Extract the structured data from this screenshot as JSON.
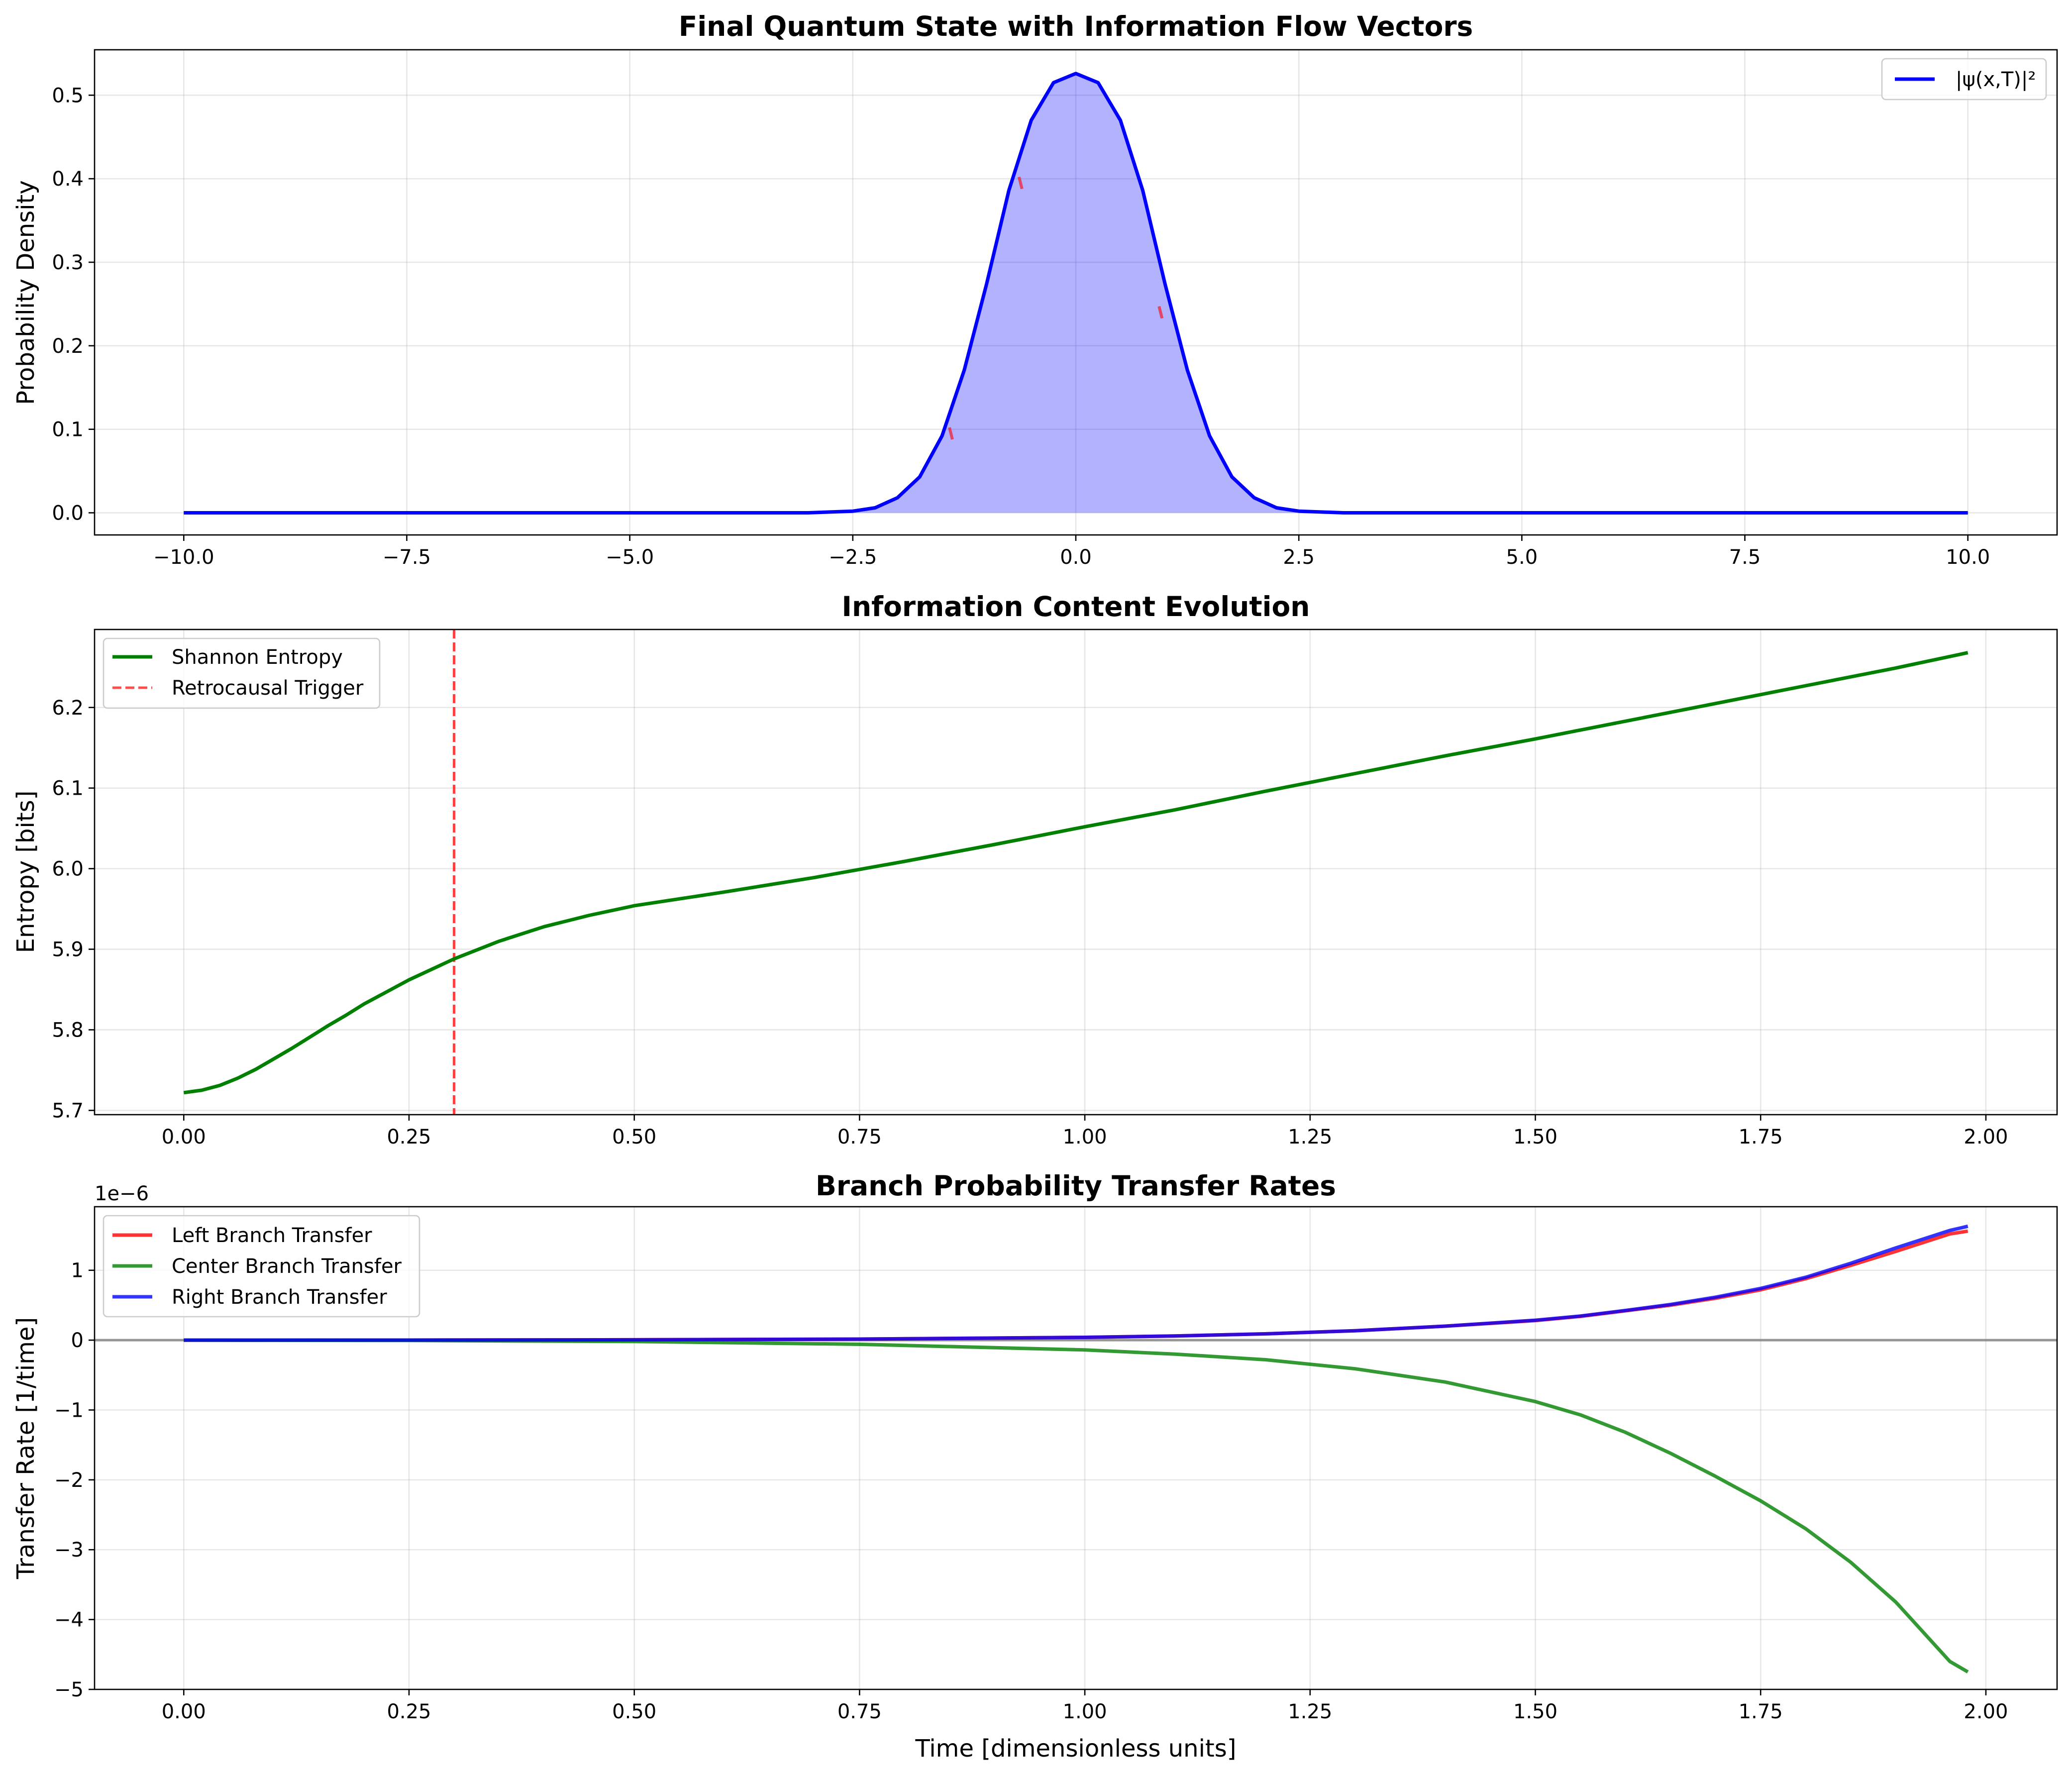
{
  "chart_data": [
    {
      "type": "area",
      "title": "Final Quantum State with Information Flow Vectors",
      "xlabel": "",
      "ylabel": "Probability Density",
      "xlim": [
        -11,
        11
      ],
      "ylim": [
        -0.0265,
        0.5544
      ],
      "xticks": [
        -10.0,
        -7.5,
        -5.0,
        -2.5,
        0.0,
        2.5,
        5.0,
        7.5,
        10.0
      ],
      "xtick_labels": [
        "−10.0",
        "−7.5",
        "−5.0",
        "−2.5",
        "0.0",
        "2.5",
        "5.0",
        "7.5",
        "10.0"
      ],
      "yticks": [
        0.0,
        0.1,
        0.2,
        0.3,
        0.4,
        0.5
      ],
      "ytick_labels": [
        "0.0",
        "0.1",
        "0.2",
        "0.3",
        "0.4",
        "0.5"
      ],
      "grid": true,
      "legend_position": "top-right",
      "series": [
        {
          "name": "|ψ(x,T)|²",
          "color": "#0000ff",
          "fill": "#0000ff",
          "fill_opacity": 0.3,
          "x": [
            -10,
            -3,
            -2.5,
            -2.25,
            -2,
            -1.75,
            -1.5,
            -1.25,
            -1,
            -0.75,
            -0.5,
            -0.25,
            0,
            0.25,
            0.5,
            0.75,
            1,
            1.25,
            1.5,
            1.75,
            2,
            2.25,
            2.5,
            3,
            10
          ],
          "y": [
            0,
            0.0,
            0.002,
            0.006,
            0.018,
            0.043,
            0.092,
            0.171,
            0.274,
            0.386,
            0.47,
            0.515,
            0.526,
            0.515,
            0.47,
            0.386,
            0.274,
            0.171,
            0.092,
            0.043,
            0.018,
            0.006,
            0.002,
            0.0,
            0
          ]
        }
      ],
      "vectors_color": "#ff0000",
      "vectors": [
        {
          "x": -1.4,
          "y": 0.095
        },
        {
          "x": -0.62,
          "y": 0.395
        },
        {
          "x": 0.95,
          "y": 0.24
        }
      ]
    },
    {
      "type": "line",
      "title": "Information Content Evolution",
      "xlabel": "",
      "ylabel": "Entropy [bits]",
      "xlim": [
        -0.099,
        2.079
      ],
      "ylim": [
        5.6947,
        6.2968
      ],
      "xticks": [
        0.0,
        0.25,
        0.5,
        0.75,
        1.0,
        1.25,
        1.5,
        1.75,
        2.0
      ],
      "xtick_labels": [
        "0.00",
        "0.25",
        "0.50",
        "0.75",
        "1.00",
        "1.25",
        "1.50",
        "1.75",
        "2.00"
      ],
      "yticks": [
        5.7,
        5.8,
        5.9,
        6.0,
        6.1,
        6.2
      ],
      "ytick_labels": [
        "5.7",
        "5.8",
        "5.9",
        "6.0",
        "6.1",
        "6.2"
      ],
      "grid": true,
      "legend_position": "top-left",
      "series": [
        {
          "name": "Shannon Entropy",
          "color": "#008000",
          "dashed": false,
          "x": [
            0.0,
            0.02,
            0.04,
            0.06,
            0.08,
            0.1,
            0.12,
            0.14,
            0.16,
            0.18,
            0.2,
            0.25,
            0.3,
            0.35,
            0.4,
            0.45,
            0.5,
            0.6,
            0.7,
            0.8,
            0.9,
            1.0,
            1.1,
            1.2,
            1.3,
            1.4,
            1.5,
            1.6,
            1.7,
            1.8,
            1.9,
            1.98
          ],
          "y": [
            5.722,
            5.725,
            5.731,
            5.74,
            5.751,
            5.764,
            5.777,
            5.791,
            5.805,
            5.818,
            5.832,
            5.862,
            5.888,
            5.91,
            5.928,
            5.942,
            5.954,
            5.971,
            5.989,
            6.009,
            6.03,
            6.052,
            6.073,
            6.096,
            6.118,
            6.14,
            6.161,
            6.183,
            6.205,
            6.227,
            6.249,
            6.268
          ]
        }
      ],
      "vlines": [
        {
          "name": "Retrocausal Trigger",
          "x": 0.3,
          "color": "#ff0000",
          "dashed": true
        }
      ]
    },
    {
      "type": "line",
      "title": "Branch Probability Transfer Rates",
      "xlabel": "Time [dimensionless units]",
      "ylabel": "Transfer Rate [1/time]",
      "offset_text": "1e−6",
      "xlim": [
        -0.099,
        2.079
      ],
      "ylim": [
        -5.0,
        1.91
      ],
      "xticks": [
        0.0,
        0.25,
        0.5,
        0.75,
        1.0,
        1.25,
        1.5,
        1.75,
        2.0
      ],
      "xtick_labels": [
        "0.00",
        "0.25",
        "0.50",
        "0.75",
        "1.00",
        "1.25",
        "1.50",
        "1.75",
        "2.00"
      ],
      "yticks": [
        -5,
        -4,
        -3,
        -2,
        -1,
        0,
        1
      ],
      "ytick_labels": [
        "−5",
        "−4",
        "−3",
        "−2",
        "−1",
        "0",
        "1"
      ],
      "grid": true,
      "legend_position": "top-left",
      "hline": {
        "y": 0,
        "color": "#808080"
      },
      "x": [
        0.0,
        0.25,
        0.5,
        0.75,
        1.0,
        1.1,
        1.2,
        1.3,
        1.4,
        1.5,
        1.55,
        1.6,
        1.65,
        1.7,
        1.75,
        1.8,
        1.85,
        1.9,
        1.96,
        1.98
      ],
      "series": [
        {
          "name": "Left Branch Transfer",
          "color": "#ff0000",
          "y": [
            0.0,
            0.001,
            0.005,
            0.015,
            0.04,
            0.06,
            0.09,
            0.135,
            0.2,
            0.28,
            0.34,
            0.42,
            0.5,
            0.6,
            0.72,
            0.88,
            1.07,
            1.27,
            1.52,
            1.56
          ]
        },
        {
          "name": "Center Branch Transfer",
          "color": "#008000",
          "y": [
            0.0,
            -0.005,
            -0.02,
            -0.06,
            -0.14,
            -0.2,
            -0.28,
            -0.41,
            -0.6,
            -0.88,
            -1.07,
            -1.32,
            -1.62,
            -1.95,
            -2.3,
            -2.7,
            -3.18,
            -3.75,
            -4.6,
            -4.75
          ]
        },
        {
          "name": "Right Branch Transfer",
          "color": "#0000ff",
          "y": [
            0.0,
            0.001,
            0.005,
            0.015,
            0.04,
            0.06,
            0.09,
            0.135,
            0.2,
            0.285,
            0.345,
            0.425,
            0.51,
            0.615,
            0.74,
            0.9,
            1.1,
            1.32,
            1.57,
            1.63
          ]
        }
      ]
    }
  ]
}
